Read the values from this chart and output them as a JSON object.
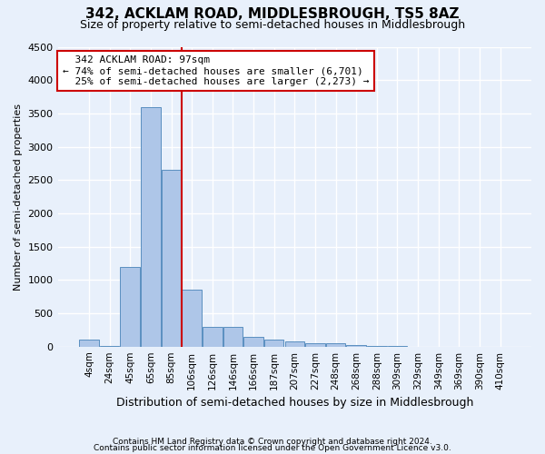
{
  "title": "342, ACKLAM ROAD, MIDDLESBROUGH, TS5 8AZ",
  "subtitle": "Size of property relative to semi-detached houses in Middlesbrough",
  "xlabel": "Distribution of semi-detached houses by size in Middlesbrough",
  "ylabel": "Number of semi-detached properties",
  "footer1": "Contains HM Land Registry data © Crown copyright and database right 2024.",
  "footer2": "Contains public sector information licensed under the Open Government Licence v3.0.",
  "bar_labels": [
    "4sqm",
    "24sqm",
    "45sqm",
    "65sqm",
    "85sqm",
    "106sqm",
    "126sqm",
    "146sqm",
    "166sqm",
    "187sqm",
    "207sqm",
    "227sqm",
    "248sqm",
    "268sqm",
    "288sqm",
    "309sqm",
    "329sqm",
    "349sqm",
    "369sqm",
    "390sqm",
    "410sqm"
  ],
  "bar_values": [
    100,
    5,
    1200,
    3600,
    2650,
    850,
    300,
    300,
    150,
    100,
    75,
    50,
    50,
    25,
    5,
    3,
    2,
    1,
    1,
    0,
    0
  ],
  "bar_color": "#aec6e8",
  "bar_edge_color": "#5a8fc0",
  "background_color": "#e8f0fb",
  "grid_color": "#ffffff",
  "property_label": "342 ACKLAM ROAD: 97sqm",
  "pct_smaller": 74,
  "num_smaller": 6701,
  "pct_larger": 25,
  "num_larger": 2273,
  "ylim": [
    0,
    4500
  ],
  "yticks": [
    0,
    500,
    1000,
    1500,
    2000,
    2500,
    3000,
    3500,
    4000,
    4500
  ],
  "annotation_box_color": "#ffffff",
  "annotation_box_edge": "#cc0000",
  "vline_color": "#cc0000",
  "title_fontsize": 11,
  "subtitle_fontsize": 9
}
